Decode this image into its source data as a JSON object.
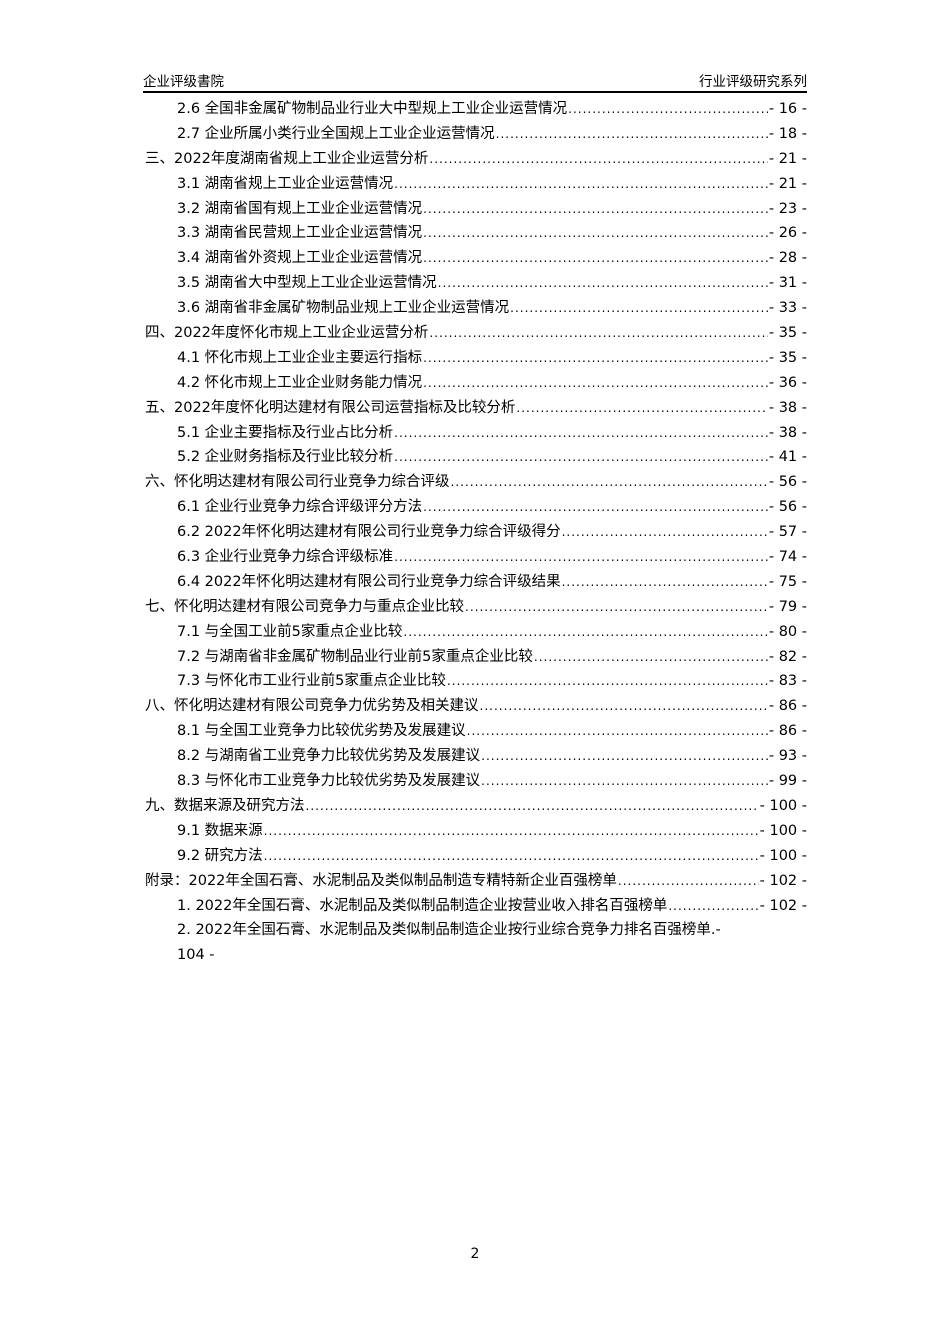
{
  "header": {
    "left": "企业评级書院",
    "right": "行业评级研究系列"
  },
  "toc": [
    {
      "level": 2,
      "text": "2.6 全国非金属矿物制品业行业大中型规上工业企业运营情况",
      "page": "- 16 -"
    },
    {
      "level": 2,
      "text": "2.7 企业所属小类行业全国规上工业企业运营情况",
      "page": "- 18 -"
    },
    {
      "level": 1,
      "text": "三、2022年度湖南省规上工业企业运营分析",
      "page": "- 21 -"
    },
    {
      "level": 2,
      "text": "3.1 湖南省规上工业企业运营情况",
      "page": "- 21 -"
    },
    {
      "level": 2,
      "text": "3.2 湖南省国有规上工业企业运营情况",
      "page": "- 23 -"
    },
    {
      "level": 2,
      "text": "3.3 湖南省民营规上工业企业运营情况",
      "page": "- 26 -"
    },
    {
      "level": 2,
      "text": "3.4 湖南省外资规上工业企业运营情况",
      "page": "- 28 -"
    },
    {
      "level": 2,
      "text": "3.5 湖南省大中型规上工业企业运营情况",
      "page": "- 31 -"
    },
    {
      "level": 2,
      "text": "3.6 湖南省非金属矿物制品业规上工业企业运营情况",
      "page": "- 33 -"
    },
    {
      "level": 1,
      "text": "四、2022年度怀化市规上工业企业运营分析",
      "page": "- 35 -"
    },
    {
      "level": 2,
      "text": "4.1 怀化市规上工业企业主要运行指标",
      "page": "- 35 -"
    },
    {
      "level": 2,
      "text": "4.2 怀化市规上工业企业财务能力情况",
      "page": "- 36 -"
    },
    {
      "level": 1,
      "text": "五、2022年度怀化明达建材有限公司运营指标及比较分析",
      "page": "- 38 -"
    },
    {
      "level": 2,
      "text": "5.1 企业主要指标及行业占比分析",
      "page": "- 38 -"
    },
    {
      "level": 2,
      "text": "5.2 企业财务指标及行业比较分析",
      "page": "- 41 -"
    },
    {
      "level": 1,
      "text": "六、怀化明达建材有限公司行业竞争力综合评级",
      "page": "- 56 -"
    },
    {
      "level": 2,
      "text": "6.1 企业行业竞争力综合评级评分方法",
      "page": "- 56 -"
    },
    {
      "level": 2,
      "text": "6.2 2022年怀化明达建材有限公司行业竞争力综合评级得分",
      "page": "- 57 -"
    },
    {
      "level": 2,
      "text": "6.3 企业行业竞争力综合评级标准",
      "page": "- 74 -"
    },
    {
      "level": 2,
      "text": "6.4 2022年怀化明达建材有限公司行业竞争力综合评级结果",
      "page": "- 75 -"
    },
    {
      "level": 1,
      "text": "七、怀化明达建材有限公司竞争力与重点企业比较",
      "page": "- 79 -"
    },
    {
      "level": 2,
      "text": "7.1 与全国工业前5家重点企业比较",
      "page": "- 80 -"
    },
    {
      "level": 2,
      "text": "7.2 与湖南省非金属矿物制品业行业前5家重点企业比较",
      "page": "- 82 -"
    },
    {
      "level": 2,
      "text": "7.3 与怀化市工业行业前5家重点企业比较",
      "page": "- 83 -"
    },
    {
      "level": 1,
      "text": "八、怀化明达建材有限公司竞争力优劣势及相关建议",
      "page": "- 86 -"
    },
    {
      "level": 2,
      "text": "8.1 与全国工业竞争力比较优劣势及发展建议",
      "page": "- 86 -"
    },
    {
      "level": 2,
      "text": "8.2 与湖南省工业竞争力比较优劣势及发展建议",
      "page": "- 93 -"
    },
    {
      "level": 2,
      "text": "8.3 与怀化市工业竞争力比较优劣势及发展建议",
      "page": "- 99 -"
    },
    {
      "level": 1,
      "text": "九、数据来源及研究方法",
      "page": "- 100 -"
    },
    {
      "level": 2,
      "text": "9.1 数据来源",
      "page": "- 100 -"
    },
    {
      "level": 2,
      "text": "9.2 研究方法",
      "page": "- 100 -"
    },
    {
      "level": 1,
      "text": "附录：2022年全国石膏、水泥制品及类似制品制造专精特新企业百强榜单",
      "page": "- 102 -"
    },
    {
      "level": 2,
      "text": "1. 2022年全国石膏、水泥制品及类似制品制造企业按营业收入排名百强榜单",
      "page": "- 102 -"
    }
  ],
  "toc_last": {
    "text": "2. 2022年全国石膏、水泥制品及类似制品制造企业按行业综合竞争力排名百强榜单",
    "tail": ".-",
    "page_continued": "104 -"
  },
  "footer": {
    "page_number": "2"
  }
}
